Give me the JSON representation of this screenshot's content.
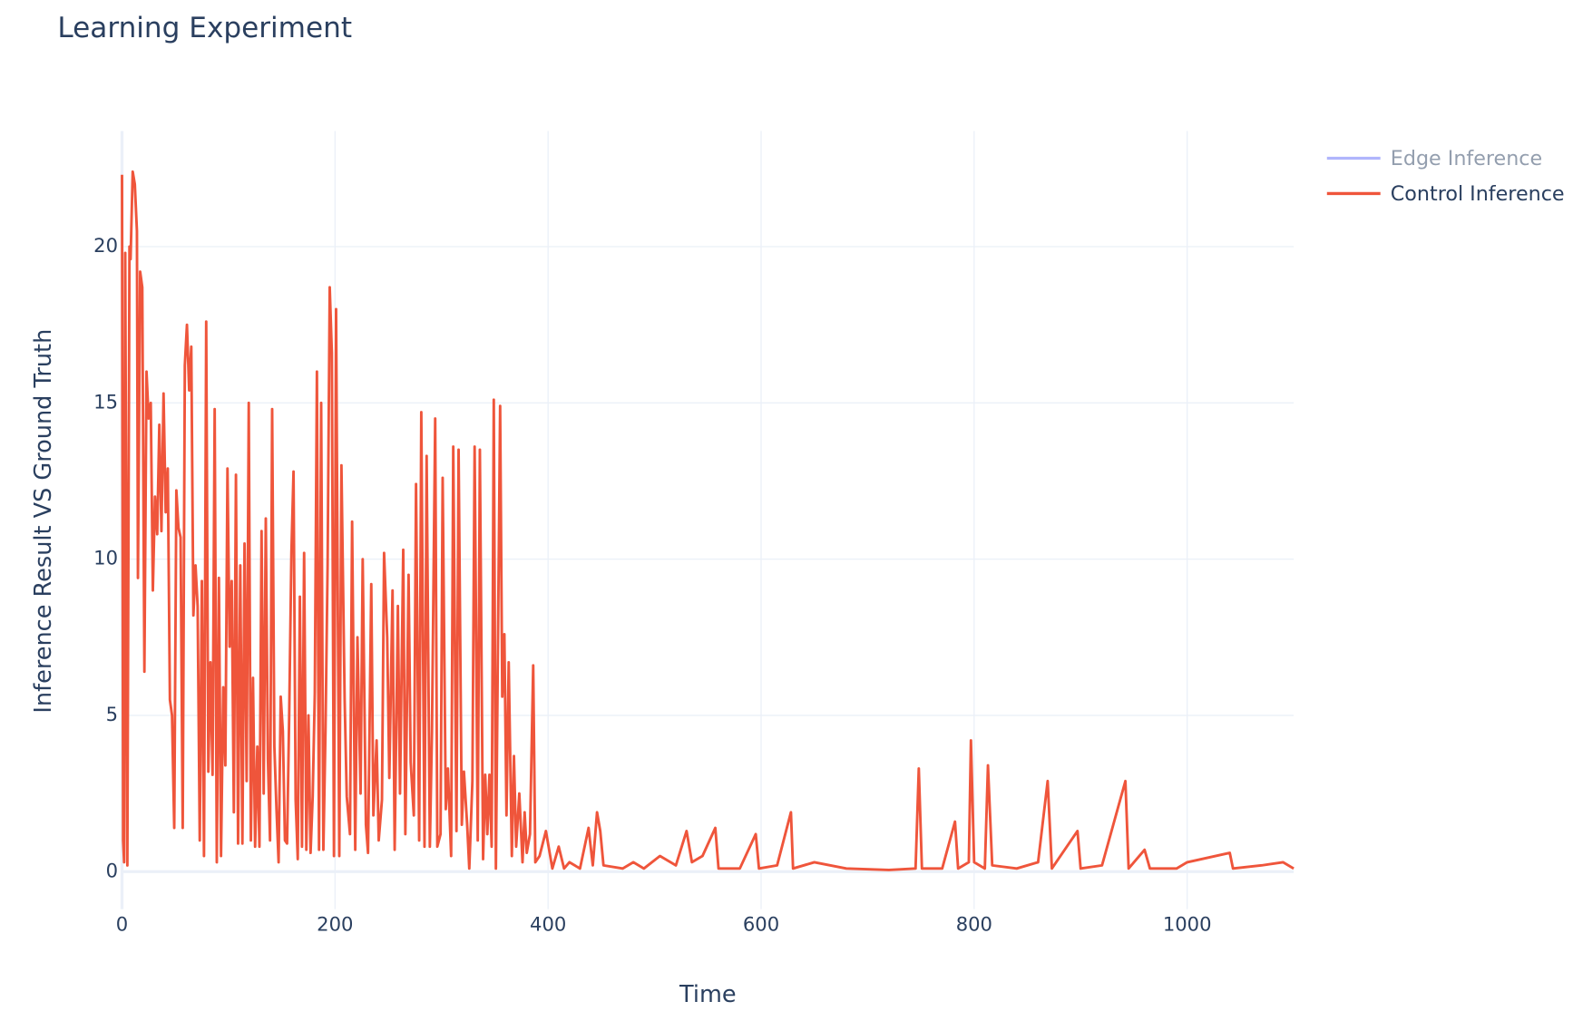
{
  "chart_data": {
    "type": "line",
    "title": "Learning Experiment",
    "x_label": "Time",
    "y_label": "Inference Result VS Ground Truth",
    "xlim": [
      0,
      1100
    ],
    "ylim": [
      -1.2,
      23.7
    ],
    "xticks": [
      0,
      200,
      400,
      600,
      800,
      1000
    ],
    "yticks": [
      0,
      5,
      10,
      15,
      20
    ],
    "grid": true,
    "legend": "top-right",
    "x": [
      0,
      1,
      2,
      3,
      5,
      7,
      8,
      10,
      12,
      14,
      15,
      17,
      19,
      21,
      23,
      25,
      27,
      29,
      31,
      33,
      35,
      37,
      39,
      41,
      43,
      45,
      47,
      49,
      51,
      53,
      55,
      57,
      59,
      61,
      63,
      65,
      67,
      69,
      71,
      73,
      75,
      77,
      79,
      81,
      83,
      85,
      87,
      89,
      91,
      93,
      95,
      97,
      99,
      101,
      103,
      105,
      107,
      109,
      111,
      113,
      115,
      117,
      119,
      121,
      123,
      125,
      127,
      129,
      131,
      133,
      135,
      137,
      139,
      141,
      143,
      145,
      147,
      149,
      151,
      153,
      155,
      157,
      159,
      161,
      163,
      165,
      167,
      169,
      171,
      173,
      175,
      177,
      179,
      181,
      183,
      185,
      187,
      189,
      191,
      193,
      195,
      197,
      199,
      201,
      204,
      206,
      209,
      211,
      214,
      216,
      219,
      221,
      224,
      226,
      229,
      231,
      234,
      236,
      239,
      241,
      244,
      246,
      249,
      251,
      254,
      256,
      259,
      261,
      264,
      266,
      269,
      271,
      274,
      276,
      279,
      281,
      284,
      286,
      289,
      291,
      294,
      296,
      299,
      301,
      304,
      306,
      309,
      311,
      314,
      316,
      319,
      321,
      324,
      326,
      329,
      331,
      334,
      336,
      339,
      341,
      343,
      345,
      347,
      349,
      351,
      355,
      357,
      359,
      361,
      363,
      366,
      368,
      370,
      373,
      376,
      378,
      380,
      383,
      386,
      388,
      392,
      398,
      404,
      410,
      415,
      420,
      430,
      438,
      442,
      446,
      449,
      452,
      470,
      480,
      490,
      505,
      520,
      530,
      535,
      545,
      557,
      560,
      580,
      595,
      598,
      615,
      628,
      630,
      650,
      680,
      720,
      745,
      748,
      751,
      770,
      782,
      785,
      795,
      797,
      800,
      810,
      813,
      817,
      840,
      860,
      869,
      873,
      897,
      900,
      920,
      942,
      945,
      960,
      965,
      990,
      1000,
      1040,
      1043,
      1070,
      1090,
      1100
    ],
    "series": [
      {
        "name": "Edge Inference",
        "color": "#636efa",
        "visible": "legendonly"
      },
      {
        "name": "Control Inference",
        "color": "#ef553b",
        "visible": true,
        "values": [
          22.3,
          1,
          0.3,
          19.8,
          0.2,
          20,
          19.6,
          22.4,
          22,
          20.5,
          9.4,
          19.2,
          18.7,
          6.4,
          16,
          14.5,
          15,
          9,
          12,
          10.8,
          14.3,
          10.9,
          15.3,
          11.5,
          12.9,
          5.5,
          5,
          1.4,
          12.2,
          11,
          10.7,
          1.4,
          16.2,
          17.5,
          15.4,
          16.8,
          8.2,
          9.8,
          8.5,
          1,
          9.3,
          0.5,
          17.6,
          3.2,
          6.7,
          3.1,
          14.8,
          0.3,
          9.4,
          0.5,
          5.9,
          3.4,
          12.9,
          7.2,
          9.3,
          1.9,
          12.7,
          0.9,
          9.8,
          0.9,
          10.5,
          2.9,
          15,
          1,
          6.2,
          0.8,
          4,
          0.8,
          10.9,
          2.5,
          11.3,
          3.6,
          1,
          14.8,
          4,
          2,
          0.3,
          5.6,
          4.5,
          1,
          0.9,
          5,
          10.2,
          12.8,
          2.3,
          0.4,
          8.8,
          0.8,
          10.2,
          0.7,
          5,
          0.6,
          2.4,
          5.7,
          16,
          0.7,
          15,
          0.7,
          4.5,
          9.8,
          18.7,
          16.6,
          0.5,
          18,
          0.5,
          13,
          5.5,
          2.4,
          1.2,
          11.2,
          0.7,
          7.5,
          2.5,
          10,
          1.5,
          0.6,
          9.2,
          1.8,
          4.2,
          1,
          2.3,
          10.2,
          7.5,
          3,
          9,
          0.7,
          8.5,
          2.5,
          10.3,
          1.2,
          9.5,
          3.5,
          1.8,
          12.4,
          1,
          14.7,
          0.8,
          13.3,
          0.8,
          4.5,
          14.5,
          0.8,
          1.2,
          12.6,
          2,
          3.3,
          0.5,
          13.6,
          1.3,
          13.5,
          1.5,
          3.2,
          1.5,
          0.1,
          2.9,
          13.6,
          1,
          13.5,
          0.4,
          3.1,
          1.2,
          3.1,
          0.8,
          15.1,
          0.1,
          14.9,
          5.6,
          7.6,
          1.8,
          6.7,
          0.5,
          3.7,
          0.8,
          2.5,
          0.3,
          1.9,
          0.6,
          1.2,
          6.6,
          0.3,
          0.5,
          1.3,
          0.1,
          0.8,
          0.1,
          0.3,
          0.1,
          1.4,
          0.2,
          1.9,
          1.3,
          0.2,
          0.1,
          0.3,
          0.1,
          0.5,
          0.2,
          1.3,
          0.3,
          0.5,
          1.4,
          0.1,
          0.1,
          1.2,
          0.1,
          0.2,
          1.9,
          0.1,
          0.3,
          0.1,
          0.05,
          0.1,
          3.3,
          0.1,
          0.1,
          1.6,
          0.1,
          0.3,
          4.2,
          0.3,
          0.1,
          3.4,
          0.2,
          0.1,
          0.3,
          2.9,
          0.1,
          1.3,
          0.1,
          0.2,
          2.9,
          0.1,
          0.7,
          0.1,
          0.1,
          0.3,
          0.6,
          0.1,
          0.2,
          0.3,
          0.1
        ]
      }
    ]
  }
}
